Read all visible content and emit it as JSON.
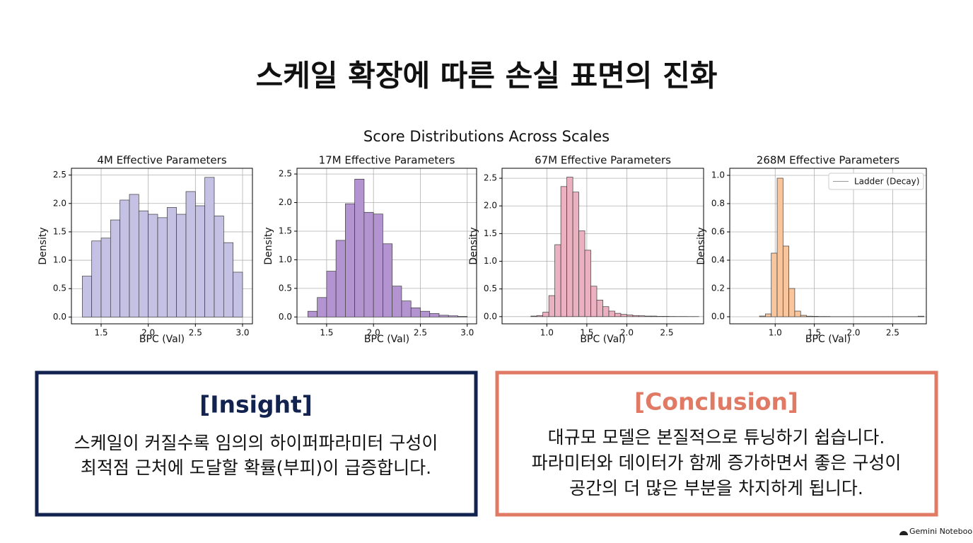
{
  "title": "스케일 확장에 따른 손실 표면의 진화",
  "figure_title": "Score Distributions Across Scales",
  "chart_data": [
    {
      "type": "histogram",
      "title": "4M Effective Parameters",
      "xlabel": "BPC (Val)",
      "ylabel": "Density",
      "color": "#c5c1e4",
      "bins": [
        1.3,
        1.4,
        1.5,
        1.6,
        1.7,
        1.8,
        1.9,
        2.0,
        2.1,
        2.2,
        2.3,
        2.4,
        2.5,
        2.6,
        2.7,
        2.8,
        2.9,
        3.0
      ],
      "values": [
        0.72,
        1.34,
        1.39,
        1.71,
        2.06,
        2.16,
        1.87,
        1.81,
        1.75,
        1.93,
        1.81,
        2.21,
        1.96,
        2.46,
        1.78,
        1.31,
        0.79
      ],
      "xlim": [
        1.185,
        3.105
      ],
      "ylim": [
        -0.12,
        2.62
      ],
      "xticks": [
        1.5,
        {
          "value": 2,
          "label": "2.0"
        },
        2.5,
        {
          "value": 3,
          "label": "3.0"
        }
      ],
      "yticks": [
        {
          "value": 0,
          "label": "0.0"
        },
        0.5,
        {
          "value": 1,
          "label": "1.0"
        },
        1.5,
        {
          "value": 2,
          "label": "2.0"
        },
        2.5
      ],
      "grid": true
    },
    {
      "type": "histogram",
      "title": "17M Effective Parameters",
      "xlabel": "BPC (Val)",
      "ylabel": "Density",
      "color": "#b394d0",
      "bins": [
        1.3,
        1.4,
        1.5,
        1.6,
        1.7,
        1.8,
        1.9,
        2.0,
        2.1,
        2.2,
        2.3,
        2.4,
        2.5,
        2.6,
        2.7,
        2.8,
        2.9,
        3.0
      ],
      "values": [
        0.1,
        0.34,
        0.8,
        1.34,
        1.98,
        2.41,
        1.83,
        1.8,
        1.28,
        0.54,
        0.28,
        0.16,
        0.1,
        0.06,
        0.03,
        0.02,
        0.01
      ],
      "xlim": [
        1.184,
        3.1
      ],
      "ylim": [
        -0.12,
        2.6
      ],
      "xticks": [
        1.5,
        {
          "value": 2,
          "label": "2.0"
        },
        2.5,
        {
          "value": 3,
          "label": "3.0"
        }
      ],
      "yticks": [
        {
          "value": 0,
          "label": "0.0"
        },
        0.5,
        {
          "value": 1,
          "label": "1.0"
        },
        1.5,
        {
          "value": 2,
          "label": "2.0"
        },
        2.5
      ],
      "grid": true
    },
    {
      "type": "histogram",
      "title": "67M Effective Parameters",
      "xlabel": "BPC (Val)",
      "ylabel": "Density",
      "color": "#ebb1c1",
      "bins": [
        0.8,
        0.875,
        0.95,
        1.025,
        1.1,
        1.175,
        1.25,
        1.325,
        1.4,
        1.475,
        1.55,
        1.625,
        1.7,
        1.775,
        1.85,
        1.925,
        2.0,
        2.075,
        2.15,
        2.225,
        2.3,
        2.375,
        2.45,
        2.525,
        2.6,
        2.675,
        2.75,
        2.825,
        2.9
      ],
      "values": [
        0.01,
        0.02,
        0.08,
        0.38,
        1.3,
        2.35,
        2.52,
        2.25,
        1.55,
        1.2,
        0.55,
        0.3,
        0.18,
        0.1,
        0.06,
        0.04,
        0.03,
        0.02,
        0.015,
        0.01,
        0.01,
        0.005,
        0.005,
        0.003,
        0.002,
        0.002,
        0.001,
        0.001
      ],
      "xlim": [
        0.44,
        2.96
      ],
      "ylim": [
        -0.13,
        2.68
      ],
      "xticks": [
        {
          "value": 1,
          "label": "1.0"
        },
        1.5,
        {
          "value": 2,
          "label": "2.0"
        },
        2.5
      ],
      "yticks": [
        {
          "value": 0,
          "label": "0.0"
        },
        0.5,
        {
          "value": 1,
          "label": "1.0"
        },
        1.5,
        {
          "value": 2,
          "label": "2.0"
        },
        2.5
      ],
      "grid": true
    },
    {
      "type": "histogram",
      "title": "268M Effective Parameters",
      "xlabel": "BPC (Val)",
      "ylabel": "Density",
      "color": "#f9c59c",
      "legend_label": "Ladder (Decay)",
      "legend": "upper right",
      "bins": [
        0.8,
        0.875,
        0.95,
        1.025,
        1.1,
        1.175,
        1.25,
        1.325,
        1.4,
        1.475,
        1.55,
        1.625,
        1.7,
        1.775,
        1.85,
        1.925,
        2.0,
        2.075,
        2.15,
        2.225,
        2.3,
        2.375,
        2.45,
        2.525,
        2.6,
        2.675,
        2.75,
        2.825,
        2.9
      ],
      "values": [
        0.005,
        0.02,
        0.45,
        0.98,
        0.5,
        0.2,
        0.04,
        0.01,
        0.004,
        0.003,
        0.002,
        0.002,
        0.001,
        0.001,
        0.001,
        0.001,
        0.001,
        0.001,
        0.001,
        0.001,
        0.001,
        0.001,
        0.001,
        0.001,
        0.001,
        0.001,
        0.001,
        0.004
      ],
      "xlim": [
        0.42,
        2.93
      ],
      "ylim": [
        -0.05,
        1.05
      ],
      "xticks": [
        {
          "value": 1,
          "label": "1.0"
        },
        1.5,
        {
          "value": 2,
          "label": "2.0"
        },
        2.5
      ],
      "yticks": [
        {
          "value": 0,
          "label": "0.0"
        },
        0.2,
        0.4,
        0.6,
        0.8,
        {
          "value": 1,
          "label": "1.0"
        }
      ],
      "grid": true
    }
  ],
  "insight": {
    "heading": "[Insight]",
    "lines": [
      "스케일이 커질수록 임의의 하이퍼파라미터 구성이",
      "최적점 근처에 도달할 확률(부피)이 급증합니다."
    ]
  },
  "conclusion": {
    "heading": "[Conclusion]",
    "lines": [
      "대규모 모델은 본질적으로 튜닝하기 쉽습니다.",
      "파라미터와 데이터가 함께 증가하면서 좋은 구성이",
      "공간의 더 많은 부분을 차지하게 됩니다."
    ]
  },
  "footer": "Gemini Notebook"
}
